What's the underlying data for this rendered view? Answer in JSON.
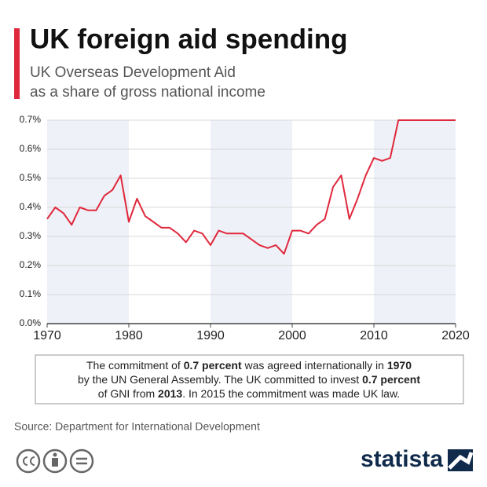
{
  "chart_data": {
    "type": "line",
    "title": "UK foreign aid spending",
    "subtitle": [
      "UK Overseas Development Aid",
      "as a share of gross national income"
    ],
    "x": [
      1970,
      1971,
      1972,
      1973,
      1974,
      1975,
      1976,
      1977,
      1978,
      1979,
      1980,
      1981,
      1982,
      1983,
      1984,
      1985,
      1986,
      1987,
      1988,
      1989,
      1990,
      1991,
      1992,
      1993,
      1994,
      1995,
      1996,
      1997,
      1998,
      1999,
      2000,
      2001,
      2002,
      2003,
      2004,
      2005,
      2006,
      2007,
      2008,
      2009,
      2010,
      2011,
      2012,
      2013,
      2014,
      2015,
      2016,
      2017,
      2018,
      2019,
      2020
    ],
    "values": [
      0.36,
      0.4,
      0.38,
      0.34,
      0.4,
      0.39,
      0.39,
      0.44,
      0.46,
      0.51,
      0.35,
      0.43,
      0.37,
      0.35,
      0.33,
      0.33,
      0.31,
      0.28,
      0.32,
      0.31,
      0.27,
      0.32,
      0.31,
      0.31,
      0.31,
      0.29,
      0.27,
      0.26,
      0.27,
      0.24,
      0.32,
      0.32,
      0.31,
      0.34,
      0.36,
      0.47,
      0.51,
      0.36,
      0.43,
      0.51,
      0.57,
      0.56,
      0.57,
      0.7,
      0.7,
      0.7,
      0.7,
      0.7,
      0.7,
      0.7,
      0.7
    ],
    "color": "#e0283c",
    "xlim": [
      1970,
      2020
    ],
    "xticks": [
      1970,
      1980,
      1990,
      2000,
      2010,
      2020
    ],
    "ylim": [
      0,
      0.7
    ],
    "yticks": [
      {
        "value": 0,
        "label": "0.0%"
      },
      {
        "value": 0.1,
        "label": "0.1%"
      },
      {
        "value": 0.2,
        "label": "0.2%"
      },
      {
        "value": 0.3,
        "label": "0.3%"
      },
      {
        "value": 0.4,
        "label": "0.4%"
      },
      {
        "value": 0.5,
        "label": "0.5%"
      },
      {
        "value": 0.6,
        "label": "0.6%"
      },
      {
        "value": 0.7,
        "label": "0.7%"
      }
    ],
    "grid": true,
    "note": [
      [
        {
          "text": "The commitment of ",
          "bold": false
        },
        {
          "text": "0.7 percent",
          "bold": true
        },
        {
          "text": " was agreed internationally in ",
          "bold": false
        },
        {
          "text": "1970",
          "bold": true
        }
      ],
      [
        {
          "text": "by the UN General Assembly. The UK committed to invest ",
          "bold": false
        },
        {
          "text": "0.7 percent",
          "bold": true
        }
      ],
      [
        {
          "text": "of GNI from ",
          "bold": false
        },
        {
          "text": "2013",
          "bold": true
        },
        {
          "text": ". In 2015 the commitment was made UK law.",
          "bold": false
        }
      ]
    ],
    "source": "Source: Department for International Development",
    "brand": "statista"
  }
}
